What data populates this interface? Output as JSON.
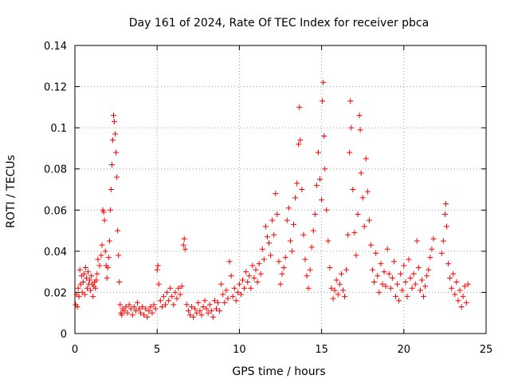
{
  "chart_data": {
    "type": "scatter",
    "title": "Day 161 of 2024, Rate Of TEC Index for receiver pbca",
    "xlabel": "GPS time / hours",
    "ylabel": "ROTI / TECUs",
    "xlim": [
      0,
      25
    ],
    "ylim": [
      0,
      0.14
    ],
    "xticks": [
      0,
      5,
      10,
      15,
      20,
      25
    ],
    "xtick_labels": [
      "0",
      "5",
      "10",
      "15",
      "20",
      "25"
    ],
    "yticks": [
      0,
      0.02,
      0.04,
      0.06,
      0.08,
      0.1,
      0.12,
      0.14
    ],
    "ytick_labels": [
      "0",
      "0.02",
      "0.04",
      "0.06",
      "0.08",
      "0.1",
      "0.12",
      "0.14"
    ],
    "grid": true,
    "marker": "+",
    "marker_color": "#ff0000",
    "series": [
      {
        "name": "ROTI",
        "points": [
          [
            0.05,
            0.014
          ],
          [
            0.1,
            0.019
          ],
          [
            0.15,
            0.013
          ],
          [
            0.2,
            0.022
          ],
          [
            0.25,
            0.018
          ],
          [
            0.3,
            0.031
          ],
          [
            0.35,
            0.024
          ],
          [
            0.4,
            0.028
          ],
          [
            0.45,
            0.02
          ],
          [
            0.5,
            0.025
          ],
          [
            0.55,
            0.029
          ],
          [
            0.6,
            0.019
          ],
          [
            0.65,
            0.032
          ],
          [
            0.7,
            0.027
          ],
          [
            0.75,
            0.022
          ],
          [
            0.8,
            0.03
          ],
          [
            0.85,
            0.024
          ],
          [
            0.9,
            0.026
          ],
          [
            0.95,
            0.021
          ],
          [
            1.0,
            0.028
          ],
          [
            1.05,
            0.024
          ],
          [
            1.1,
            0.018
          ],
          [
            1.15,
            0.023
          ],
          [
            1.2,
            0.025
          ],
          [
            1.25,
            0.022
          ],
          [
            1.3,
            0.026
          ],
          [
            1.35,
            0.029
          ],
          [
            1.4,
            0.036
          ],
          [
            1.5,
            0.033
          ],
          [
            1.6,
            0.038
          ],
          [
            1.65,
            0.043
          ],
          [
            1.7,
            0.06
          ],
          [
            1.75,
            0.059
          ],
          [
            1.8,
            0.055
          ],
          [
            1.85,
            0.04
          ],
          [
            1.9,
            0.033
          ],
          [
            1.95,
            0.027
          ],
          [
            2.0,
            0.032
          ],
          [
            2.05,
            0.037
          ],
          [
            2.1,
            0.045
          ],
          [
            2.15,
            0.06
          ],
          [
            2.2,
            0.07
          ],
          [
            2.25,
            0.082
          ],
          [
            2.3,
            0.094
          ],
          [
            2.35,
            0.106
          ],
          [
            2.4,
            0.103
          ],
          [
            2.45,
            0.097
          ],
          [
            2.5,
            0.088
          ],
          [
            2.55,
            0.076
          ],
          [
            2.6,
            0.05
          ],
          [
            2.65,
            0.038
          ],
          [
            2.7,
            0.025
          ],
          [
            2.75,
            0.014
          ],
          [
            2.8,
            0.01
          ],
          [
            2.85,
            0.009
          ],
          [
            2.9,
            0.012
          ],
          [
            3.0,
            0.011
          ],
          [
            3.1,
            0.013
          ],
          [
            3.2,
            0.01
          ],
          [
            3.3,
            0.014
          ],
          [
            3.4,
            0.012
          ],
          [
            3.5,
            0.009
          ],
          [
            3.6,
            0.013
          ],
          [
            3.7,
            0.011
          ],
          [
            3.8,
            0.015
          ],
          [
            3.9,
            0.012
          ],
          [
            4.0,
            0.01
          ],
          [
            4.1,
            0.013
          ],
          [
            4.2,
            0.009
          ],
          [
            4.3,
            0.012
          ],
          [
            4.4,
            0.008
          ],
          [
            4.5,
            0.011
          ],
          [
            4.6,
            0.013
          ],
          [
            4.7,
            0.01
          ],
          [
            4.8,
            0.014
          ],
          [
            4.9,
            0.012
          ],
          [
            5.0,
            0.031
          ],
          [
            5.05,
            0.033
          ],
          [
            5.1,
            0.024
          ],
          [
            5.2,
            0.016
          ],
          [
            5.3,
            0.013
          ],
          [
            5.4,
            0.018
          ],
          [
            5.5,
            0.014
          ],
          [
            5.6,
            0.02
          ],
          [
            5.7,
            0.016
          ],
          [
            5.8,
            0.022
          ],
          [
            5.9,
            0.018
          ],
          [
            6.0,
            0.014
          ],
          [
            6.1,
            0.02
          ],
          [
            6.2,
            0.017
          ],
          [
            6.3,
            0.022
          ],
          [
            6.4,
            0.019
          ],
          [
            6.5,
            0.023
          ],
          [
            6.6,
            0.043
          ],
          [
            6.65,
            0.046
          ],
          [
            6.7,
            0.041
          ],
          [
            6.8,
            0.014
          ],
          [
            6.9,
            0.011
          ],
          [
            7.0,
            0.009
          ],
          [
            7.1,
            0.013
          ],
          [
            7.2,
            0.008
          ],
          [
            7.3,
            0.012
          ],
          [
            7.4,
            0.01
          ],
          [
            7.5,
            0.015
          ],
          [
            7.6,
            0.011
          ],
          [
            7.7,
            0.009
          ],
          [
            7.8,
            0.013
          ],
          [
            7.9,
            0.016
          ],
          [
            8.0,
            0.012
          ],
          [
            8.1,
            0.01
          ],
          [
            8.2,
            0.014
          ],
          [
            8.3,
            0.011
          ],
          [
            8.4,
            0.008
          ],
          [
            8.5,
            0.016
          ],
          [
            8.6,
            0.012
          ],
          [
            8.7,
            0.015
          ],
          [
            8.8,
            0.011
          ],
          [
            8.9,
            0.024
          ],
          [
            9.0,
            0.019
          ],
          [
            9.1,
            0.015
          ],
          [
            9.2,
            0.021
          ],
          [
            9.3,
            0.017
          ],
          [
            9.4,
            0.035
          ],
          [
            9.5,
            0.028
          ],
          [
            9.6,
            0.018
          ],
          [
            9.7,
            0.022
          ],
          [
            9.8,
            0.016
          ],
          [
            9.9,
            0.02
          ],
          [
            10.0,
            0.024
          ],
          [
            10.1,
            0.019
          ],
          [
            10.2,
            0.026
          ],
          [
            10.3,
            0.022
          ],
          [
            10.4,
            0.03
          ],
          [
            10.5,
            0.025
          ],
          [
            10.6,
            0.028
          ],
          [
            10.7,
            0.022
          ],
          [
            10.8,
            0.033
          ],
          [
            10.9,
            0.027
          ],
          [
            11.0,
            0.031
          ],
          [
            11.1,
            0.025
          ],
          [
            11.2,
            0.034
          ],
          [
            11.3,
            0.029
          ],
          [
            11.4,
            0.041
          ],
          [
            11.5,
            0.036
          ],
          [
            11.6,
            0.052
          ],
          [
            11.7,
            0.047
          ],
          [
            11.8,
            0.044
          ],
          [
            11.9,
            0.038
          ],
          [
            12.0,
            0.055
          ],
          [
            12.1,
            0.048
          ],
          [
            12.2,
            0.068
          ],
          [
            12.3,
            0.058
          ],
          [
            12.4,
            0.035
          ],
          [
            12.5,
            0.024
          ],
          [
            12.6,
            0.029
          ],
          [
            12.7,
            0.032
          ],
          [
            12.8,
            0.037
          ],
          [
            12.9,
            0.055
          ],
          [
            13.0,
            0.061
          ],
          [
            13.1,
            0.045
          ],
          [
            13.2,
            0.04
          ],
          [
            13.3,
            0.053
          ],
          [
            13.4,
            0.066
          ],
          [
            13.5,
            0.073
          ],
          [
            13.6,
            0.092
          ],
          [
            13.65,
            0.11
          ],
          [
            13.7,
            0.094
          ],
          [
            13.8,
            0.07
          ],
          [
            13.9,
            0.048
          ],
          [
            14.0,
            0.036
          ],
          [
            14.1,
            0.028
          ],
          [
            14.2,
            0.022
          ],
          [
            14.3,
            0.031
          ],
          [
            14.4,
            0.042
          ],
          [
            14.5,
            0.05
          ],
          [
            14.6,
            0.058
          ],
          [
            14.7,
            0.072
          ],
          [
            14.8,
            0.088
          ],
          [
            14.9,
            0.075
          ],
          [
            15.0,
            0.065
          ],
          [
            15.05,
            0.113
          ],
          [
            15.1,
            0.122
          ],
          [
            15.15,
            0.096
          ],
          [
            15.2,
            0.08
          ],
          [
            15.3,
            0.06
          ],
          [
            15.4,
            0.045
          ],
          [
            15.5,
            0.032
          ],
          [
            15.6,
            0.022
          ],
          [
            15.7,
            0.017
          ],
          [
            15.8,
            0.021
          ],
          [
            15.9,
            0.026
          ],
          [
            16.0,
            0.019
          ],
          [
            16.1,
            0.024
          ],
          [
            16.2,
            0.029
          ],
          [
            16.3,
            0.021
          ],
          [
            16.4,
            0.018
          ],
          [
            16.5,
            0.031
          ],
          [
            16.6,
            0.048
          ],
          [
            16.7,
            0.088
          ],
          [
            16.75,
            0.113
          ],
          [
            16.8,
            0.1
          ],
          [
            16.9,
            0.07
          ],
          [
            17.0,
            0.049
          ],
          [
            17.1,
            0.038
          ],
          [
            17.2,
            0.058
          ],
          [
            17.3,
            0.106
          ],
          [
            17.35,
            0.099
          ],
          [
            17.4,
            0.078
          ],
          [
            17.5,
            0.066
          ],
          [
            17.6,
            0.052
          ],
          [
            17.7,
            0.085
          ],
          [
            17.8,
            0.069
          ],
          [
            17.9,
            0.055
          ],
          [
            18.0,
            0.043
          ],
          [
            18.1,
            0.031
          ],
          [
            18.2,
            0.025
          ],
          [
            18.3,
            0.039
          ],
          [
            18.4,
            0.028
          ],
          [
            18.5,
            0.02
          ],
          [
            18.6,
            0.034
          ],
          [
            18.7,
            0.024
          ],
          [
            18.8,
            0.03
          ],
          [
            18.9,
            0.023
          ],
          [
            19.0,
            0.041
          ],
          [
            19.1,
            0.029
          ],
          [
            19.2,
            0.022
          ],
          [
            19.3,
            0.027
          ],
          [
            19.4,
            0.035
          ],
          [
            19.5,
            0.018
          ],
          [
            19.6,
            0.024
          ],
          [
            19.7,
            0.016
          ],
          [
            19.8,
            0.029
          ],
          [
            19.9,
            0.021
          ],
          [
            20.0,
            0.033
          ],
          [
            20.1,
            0.025
          ],
          [
            20.2,
            0.018
          ],
          [
            20.3,
            0.036
          ],
          [
            20.4,
            0.027
          ],
          [
            20.5,
            0.022
          ],
          [
            20.6,
            0.029
          ],
          [
            20.7,
            0.024
          ],
          [
            20.8,
            0.045
          ],
          [
            20.9,
            0.032
          ],
          [
            21.0,
            0.021
          ],
          [
            21.1,
            0.026
          ],
          [
            21.2,
            0.018
          ],
          [
            21.3,
            0.023
          ],
          [
            21.4,
            0.028
          ],
          [
            21.5,
            0.031
          ],
          [
            21.6,
            0.037
          ],
          [
            21.7,
            0.041
          ],
          [
            21.8,
            0.046
          ],
          [
            22.3,
            0.039
          ],
          [
            22.4,
            0.045
          ],
          [
            22.5,
            0.058
          ],
          [
            22.55,
            0.063
          ],
          [
            22.6,
            0.052
          ],
          [
            22.7,
            0.034
          ],
          [
            22.8,
            0.027
          ],
          [
            22.9,
            0.022
          ],
          [
            23.0,
            0.029
          ],
          [
            23.1,
            0.019
          ],
          [
            23.2,
            0.025
          ],
          [
            23.3,
            0.016
          ],
          [
            23.4,
            0.021
          ],
          [
            23.5,
            0.013
          ],
          [
            23.6,
            0.018
          ],
          [
            23.7,
            0.023
          ],
          [
            23.8,
            0.015
          ],
          [
            23.9,
            0.024
          ]
        ]
      }
    ]
  }
}
